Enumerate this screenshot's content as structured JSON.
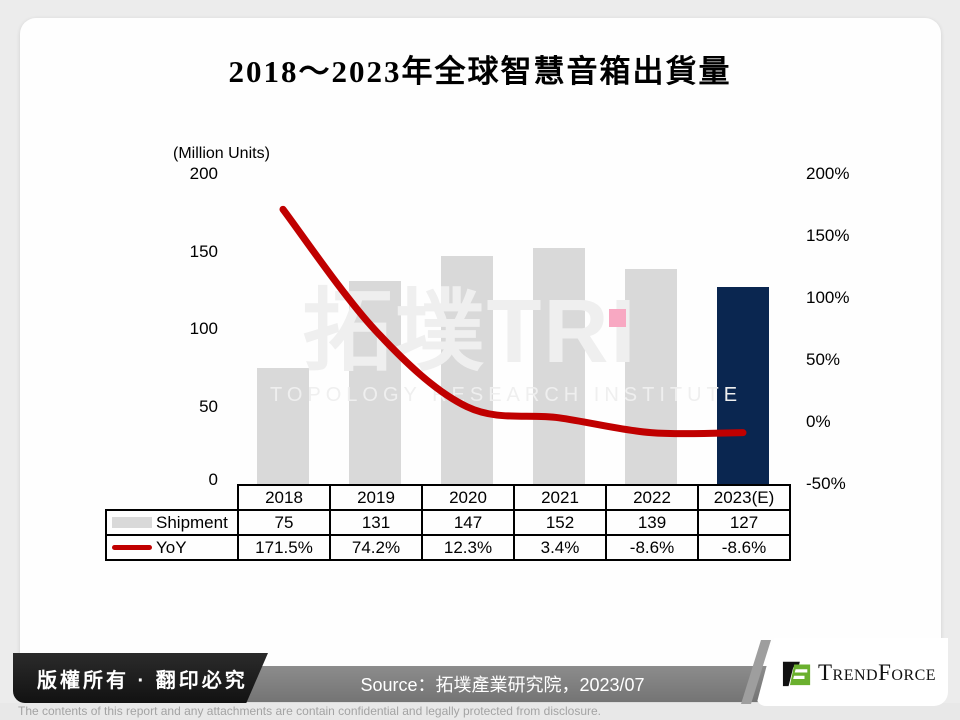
{
  "title": "2018～2023年全球智慧音箱出貨量",
  "chart_data": {
    "type": "combo-bar-line",
    "title": "2018～2023年全球智慧音箱出貨量",
    "categories": [
      "2018",
      "2019",
      "2020",
      "2021",
      "2022",
      "2023(E)"
    ],
    "series": [
      {
        "name": "Shipment",
        "type": "bar",
        "axis": "left",
        "values": [
          75,
          131,
          147,
          152,
          139,
          127
        ]
      },
      {
        "name": "YoY",
        "type": "line",
        "axis": "right",
        "unit": "%",
        "values": [
          171.5,
          74.2,
          12.3,
          3.4,
          -8.6,
          -8.6
        ]
      }
    ],
    "highlight_index": 5,
    "left_axis": {
      "label": "(Million Units)",
      "range": [
        0,
        200
      ],
      "ticks": [
        "200",
        "150",
        "100",
        "50",
        "0"
      ]
    },
    "right_axis": {
      "range": [
        -50,
        200
      ],
      "ticks": [
        "200%",
        "150%",
        "100%",
        "50%",
        "0%",
        "-50%"
      ]
    },
    "grid": false,
    "legend_position": "table-left",
    "colors": {
      "bar": "#D9D9D9",
      "highlight": "#0A2650",
      "line": "#C00000",
      "marker": "#F8A8C2"
    }
  },
  "table": {
    "rows": [
      {
        "label": "Shipment",
        "values": [
          "75",
          "131",
          "147",
          "152",
          "139",
          "127"
        ]
      },
      {
        "label": "YoY",
        "values": [
          "171.5%",
          "74.2%",
          "12.3%",
          "3.4%",
          "-8.6%",
          "-8.6%"
        ]
      }
    ]
  },
  "watermark": {
    "text": "拓墣TRI",
    "subtitle": "TOPOLOGY RESEARCH INSTITUTE"
  },
  "footer": {
    "copyright": "版權所有 · 翻印必究",
    "source": "Source：拓墣產業研究院，2023/07",
    "brand": "TrendForce",
    "disclaimer": "The contents of this report and any attachments are contain confidential and legally protected from disclosure."
  }
}
